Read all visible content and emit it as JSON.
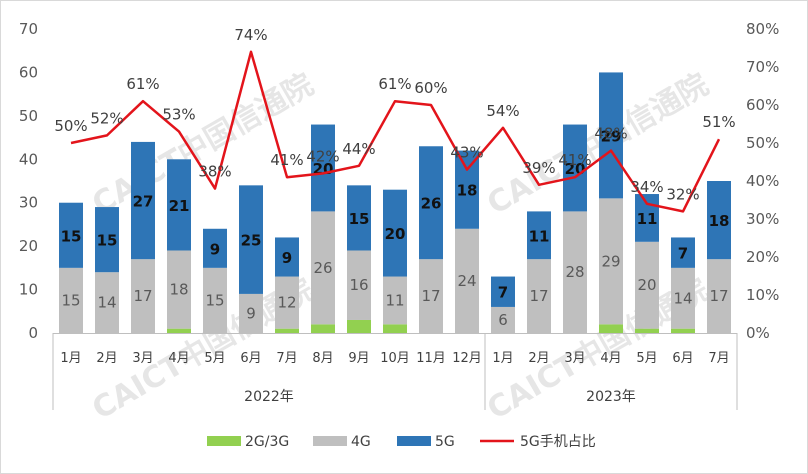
{
  "chart_data": {
    "type": "bar",
    "stacked": true,
    "categories": [
      "1月",
      "2月",
      "3月",
      "4月",
      "5月",
      "6月",
      "7月",
      "8月",
      "9月",
      "10月",
      "11月",
      "12月",
      "1月",
      "2月",
      "3月",
      "4月",
      "5月",
      "6月",
      "7月"
    ],
    "groups": [
      {
        "label": "2022年",
        "count": 12
      },
      {
        "label": "2023年",
        "count": 7
      }
    ],
    "series": [
      {
        "name": "2G/3G",
        "color": "#92d050",
        "values": [
          0,
          0,
          0,
          1,
          0,
          0,
          1,
          2,
          3,
          2,
          0,
          0,
          0,
          0,
          0,
          2,
          1,
          1,
          0
        ]
      },
      {
        "name": "4G",
        "color": "#bfbfbf",
        "values": [
          15,
          14,
          17,
          18,
          15,
          9,
          12,
          26,
          16,
          11,
          17,
          24,
          6,
          17,
          28,
          29,
          20,
          14,
          17
        ]
      },
      {
        "name": "5G",
        "color": "#2e75b6",
        "values": [
          15,
          15,
          27,
          21,
          9,
          25,
          9,
          20,
          15,
          20,
          26,
          18,
          7,
          11,
          20,
          29,
          11,
          7,
          18
        ]
      }
    ],
    "line_series": {
      "name": "5G手机占比",
      "color": "#e3141b",
      "axis": "right",
      "values": [
        50,
        52,
        61,
        53,
        38,
        74,
        41,
        42,
        44,
        61,
        60,
        43,
        54,
        39,
        41,
        48,
        34,
        32,
        51
      ],
      "labels": [
        "50%",
        "52%",
        "61%",
        "53%",
        "38%",
        "74%",
        "41%",
        "42%",
        "44%",
        "61%",
        "60%",
        "43%",
        "54%",
        "39%",
        "41%",
        "48%",
        "34%",
        "32%",
        "51%"
      ]
    },
    "y_left": {
      "ylim": [
        0,
        70
      ],
      "ticks": [
        "0",
        "10",
        "20",
        "30",
        "40",
        "50",
        "60",
        "70"
      ]
    },
    "y_right": {
      "ylim": [
        0,
        80
      ],
      "ticks": [
        "0%",
        "10%",
        "20%",
        "30%",
        "40%",
        "50%",
        "60%",
        "70%",
        "80%"
      ]
    },
    "legend_position": "bottom",
    "grid": false
  },
  "watermark": "CAICT中国信通院"
}
